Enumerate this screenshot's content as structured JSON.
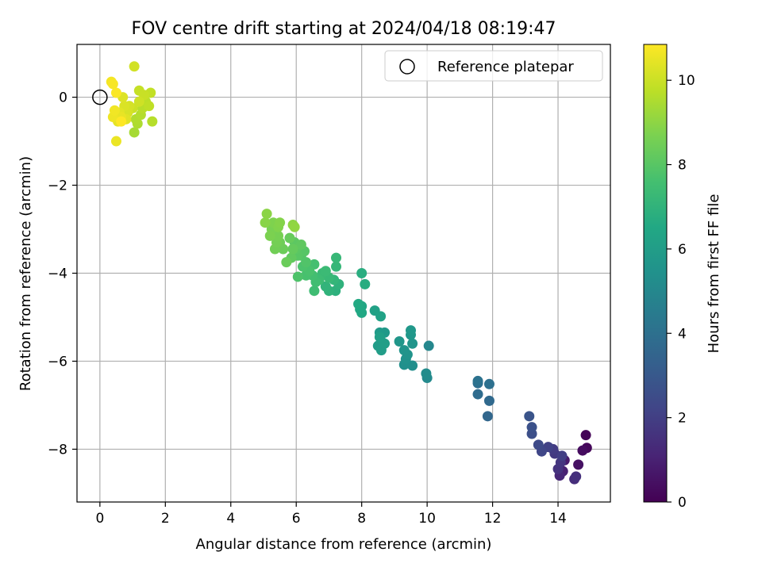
{
  "chart_data": {
    "type": "scatter",
    "title": "FOV centre drift starting at 2024/04/18 08:19:47",
    "xlabel": "Angular distance from reference (arcmin)",
    "ylabel": "Rotation from reference (arcmin)",
    "xlim": [
      -0.7,
      15.6
    ],
    "ylim": [
      -9.2,
      1.2
    ],
    "xticks": [
      0,
      2,
      4,
      6,
      8,
      10,
      12,
      14
    ],
    "yticks": [
      0,
      -2,
      -4,
      -6,
      -8
    ],
    "grid": true,
    "legend": {
      "placement": "top-right",
      "entries": [
        "Reference platepar"
      ]
    },
    "reference_point": {
      "x": 0,
      "y": 0,
      "label": "Reference platepar"
    },
    "colorbar": {
      "label": "Hours from first FF file",
      "colormap": "viridis",
      "range": [
        0,
        10.85
      ],
      "ticks": [
        0,
        2,
        4,
        6,
        8,
        10
      ]
    },
    "points": [
      [
        14.85,
        -7.68,
        0.1
      ],
      [
        14.88,
        -7.97,
        0.2
      ],
      [
        14.75,
        -8.03,
        0.35
      ],
      [
        14.62,
        -8.35,
        0.5
      ],
      [
        14.2,
        -8.25,
        0.8
      ],
      [
        14.15,
        -8.5,
        1.0
      ],
      [
        14.05,
        -8.6,
        1.2
      ],
      [
        14.5,
        -8.68,
        1.4
      ],
      [
        14.55,
        -8.62,
        1.5
      ],
      [
        14.0,
        -8.45,
        1.6
      ],
      [
        14.08,
        -8.3,
        1.7
      ],
      [
        13.9,
        -8.1,
        1.8
      ],
      [
        13.85,
        -8.0,
        1.9
      ],
      [
        14.12,
        -8.15,
        2.0
      ],
      [
        13.7,
        -7.95,
        2.1
      ],
      [
        13.5,
        -8.05,
        2.3
      ],
      [
        13.4,
        -7.9,
        2.4
      ],
      [
        13.2,
        -7.65,
        2.6
      ],
      [
        13.2,
        -7.5,
        2.7
      ],
      [
        13.12,
        -7.25,
        2.8
      ],
      [
        11.85,
        -7.25,
        3.6
      ],
      [
        11.9,
        -6.9,
        3.7
      ],
      [
        11.55,
        -6.75,
        3.8
      ],
      [
        11.55,
        -6.5,
        3.9
      ],
      [
        11.9,
        -6.52,
        4.0
      ],
      [
        11.55,
        -6.45,
        4.1
      ],
      [
        10.05,
        -5.65,
        5.0
      ],
      [
        10.0,
        -6.38,
        5.1
      ],
      [
        9.97,
        -6.28,
        5.2
      ],
      [
        9.55,
        -6.1,
        5.3
      ],
      [
        9.3,
        -6.08,
        5.4
      ],
      [
        9.35,
        -5.95,
        5.45
      ],
      [
        9.4,
        -5.85,
        5.5
      ],
      [
        9.3,
        -5.75,
        5.55
      ],
      [
        9.55,
        -5.6,
        5.6
      ],
      [
        9.15,
        -5.55,
        5.65
      ],
      [
        9.5,
        -5.4,
        5.7
      ],
      [
        9.5,
        -5.3,
        5.75
      ],
      [
        8.7,
        -5.35,
        5.8
      ],
      [
        8.55,
        -5.35,
        5.85
      ],
      [
        8.6,
        -5.55,
        5.9
      ],
      [
        8.5,
        -5.65,
        5.95
      ],
      [
        8.6,
        -5.75,
        6.0
      ],
      [
        8.7,
        -5.6,
        6.05
      ],
      [
        8.55,
        -5.45,
        6.1
      ],
      [
        8.4,
        -4.85,
        6.2
      ],
      [
        8.58,
        -4.98,
        6.25
      ],
      [
        8.0,
        -4.75,
        6.4
      ],
      [
        7.95,
        -4.82,
        6.45
      ],
      [
        8.0,
        -4.9,
        6.5
      ],
      [
        7.9,
        -4.7,
        6.55
      ],
      [
        8.1,
        -4.25,
        6.7
      ],
      [
        8.0,
        -4.0,
        6.75
      ],
      [
        7.2,
        -4.4,
        6.9
      ],
      [
        7.3,
        -4.25,
        6.95
      ],
      [
        7.0,
        -4.4,
        7.0
      ],
      [
        6.9,
        -4.3,
        7.05
      ],
      [
        7.15,
        -4.15,
        7.1
      ],
      [
        7.22,
        -3.85,
        7.15
      ],
      [
        7.22,
        -3.65,
        7.2
      ],
      [
        7.0,
        -4.1,
        7.25
      ],
      [
        6.8,
        -4.0,
        7.3
      ],
      [
        6.9,
        -3.95,
        7.35
      ],
      [
        6.7,
        -4.15,
        7.4
      ],
      [
        6.55,
        -4.4,
        7.45
      ],
      [
        6.6,
        -4.2,
        7.5
      ],
      [
        6.5,
        -4.05,
        7.55
      ],
      [
        6.55,
        -3.8,
        7.6
      ],
      [
        6.3,
        -4.05,
        7.65
      ],
      [
        6.4,
        -3.95,
        7.7
      ],
      [
        6.2,
        -3.85,
        7.75
      ],
      [
        6.05,
        -4.08,
        7.8
      ],
      [
        6.3,
        -3.75,
        7.85
      ],
      [
        6.15,
        -3.6,
        7.9
      ],
      [
        6.25,
        -3.5,
        7.95
      ],
      [
        6.05,
        -3.6,
        8.0
      ],
      [
        6.0,
        -3.45,
        8.05
      ],
      [
        5.95,
        -3.3,
        8.1
      ],
      [
        6.15,
        -3.35,
        8.15
      ],
      [
        5.85,
        -3.65,
        8.2
      ],
      [
        5.9,
        -3.45,
        8.25
      ],
      [
        5.8,
        -3.2,
        8.3
      ],
      [
        5.7,
        -3.75,
        8.35
      ],
      [
        5.6,
        -3.45,
        8.4
      ],
      [
        5.5,
        -3.3,
        8.45
      ],
      [
        5.35,
        -3.45,
        8.5
      ],
      [
        5.4,
        -3.3,
        8.55
      ],
      [
        5.45,
        -3.15,
        8.6
      ],
      [
        5.25,
        -3.0,
        8.65
      ],
      [
        5.2,
        -3.15,
        8.7
      ],
      [
        5.3,
        -2.85,
        8.75
      ],
      [
        5.45,
        -2.95,
        8.8
      ],
      [
        5.5,
        -2.85,
        8.85
      ],
      [
        5.05,
        -2.85,
        8.9
      ],
      [
        5.1,
        -2.65,
        8.95
      ],
      [
        5.9,
        -2.9,
        9.0
      ],
      [
        5.95,
        -2.95,
        9.05
      ],
      [
        1.05,
        -0.8,
        9.4
      ],
      [
        1.15,
        -0.6,
        9.5
      ],
      [
        1.1,
        -0.5,
        9.55
      ],
      [
        1.25,
        -0.4,
        9.6
      ],
      [
        1.6,
        -0.55,
        9.65
      ],
      [
        1.3,
        -0.25,
        9.7
      ],
      [
        1.4,
        -0.1,
        9.75
      ],
      [
        1.5,
        -0.2,
        9.8
      ],
      [
        1.55,
        0.1,
        9.85
      ],
      [
        1.2,
        0.15,
        9.9
      ],
      [
        1.35,
        0.05,
        9.95
      ],
      [
        1.0,
        -0.25,
        10.0
      ],
      [
        1.2,
        -0.1,
        10.05
      ],
      [
        1.05,
        0.7,
        10.1
      ],
      [
        0.9,
        -0.2,
        10.15
      ],
      [
        0.85,
        -0.35,
        10.2
      ],
      [
        0.75,
        -0.2,
        10.25
      ],
      [
        0.7,
        0.0,
        10.3
      ],
      [
        0.8,
        -0.5,
        10.35
      ],
      [
        0.6,
        -0.35,
        10.4
      ],
      [
        0.55,
        -0.55,
        10.45
      ],
      [
        0.65,
        -0.45,
        10.5
      ],
      [
        0.5,
        -1.0,
        10.55
      ],
      [
        0.4,
        -0.45,
        10.6
      ],
      [
        0.45,
        -0.3,
        10.65
      ],
      [
        0.35,
        0.35,
        10.7
      ],
      [
        0.4,
        0.3,
        10.75
      ],
      [
        0.5,
        0.1,
        10.8
      ],
      [
        0.65,
        -0.55,
        10.85
      ]
    ]
  }
}
